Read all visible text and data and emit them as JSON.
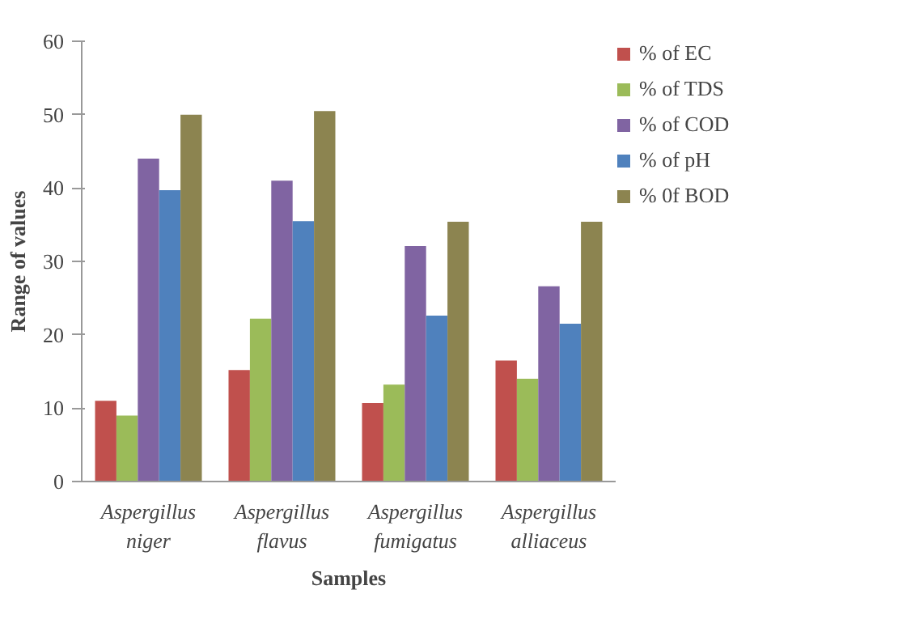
{
  "chart_data": {
    "type": "bar",
    "xlabel": "Samples",
    "ylabel": "Range of values",
    "categories": [
      "Aspergillus niger",
      "Aspergillus flavus",
      "Aspergillus fumigatus",
      "Aspergillus alliaceus"
    ],
    "series": [
      {
        "name": "% of EC",
        "color": "#c0504d",
        "values": [
          11,
          15.2,
          10.7,
          16.5
        ]
      },
      {
        "name": "% of TDS",
        "color": "#9bbb59",
        "values": [
          9,
          22.2,
          13.2,
          14
        ]
      },
      {
        "name": "% of COD",
        "color": "#8064a2",
        "values": [
          44,
          41,
          32.1,
          26.6
        ]
      },
      {
        "name": "% of pH",
        "color": "#4f81bd",
        "values": [
          39.7,
          35.5,
          22.6,
          21.5
        ]
      },
      {
        "name": "% 0f BOD",
        "color": "#8c8450",
        "values": [
          50,
          50.5,
          35.4,
          35.4
        ]
      }
    ],
    "ylim": [
      0,
      60
    ],
    "yticks": [
      0,
      10,
      20,
      30,
      40,
      50,
      60
    ],
    "grid": false,
    "legend": "right"
  }
}
